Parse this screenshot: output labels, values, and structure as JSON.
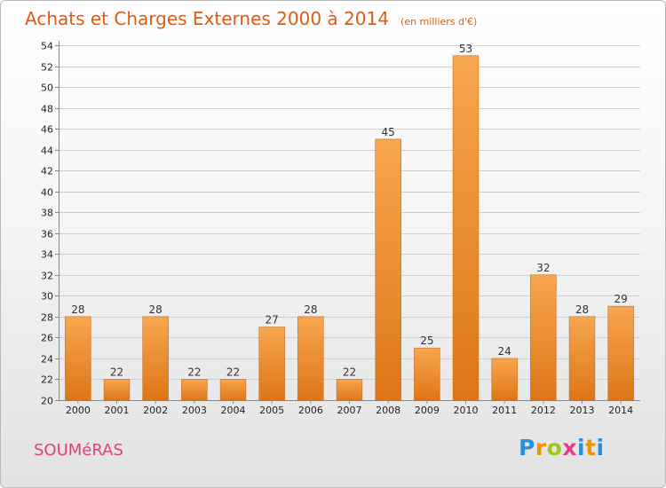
{
  "title": "Achats et Charges Externes 2000 à 2014",
  "subtitle": "(en milliers d'€)",
  "commune": "SOUMéRAS",
  "logo": {
    "p": "P",
    "r": "r",
    "o": "o",
    "x": "x",
    "i": "i",
    "t": "t",
    "i2": "i"
  },
  "colors": {
    "bar_top": "#f8a650",
    "bar_bottom": "#dd7618",
    "title": "#e05a12",
    "commune": "#e0407a"
  },
  "chart_data": {
    "type": "bar",
    "categories": [
      "2000",
      "2001",
      "2002",
      "2003",
      "2004",
      "2005",
      "2006",
      "2007",
      "2008",
      "2009",
      "2010",
      "2011",
      "2012",
      "2013",
      "2014"
    ],
    "values": [
      28,
      22,
      28,
      22,
      22,
      27,
      28,
      22,
      45,
      25,
      53,
      24,
      32,
      28,
      29
    ],
    "ylim": [
      20,
      54
    ],
    "yticks": [
      20,
      22,
      24,
      26,
      28,
      30,
      32,
      34,
      36,
      38,
      40,
      42,
      44,
      46,
      48,
      50,
      52,
      54
    ],
    "grid": true,
    "xlabel": "",
    "ylabel": ""
  }
}
